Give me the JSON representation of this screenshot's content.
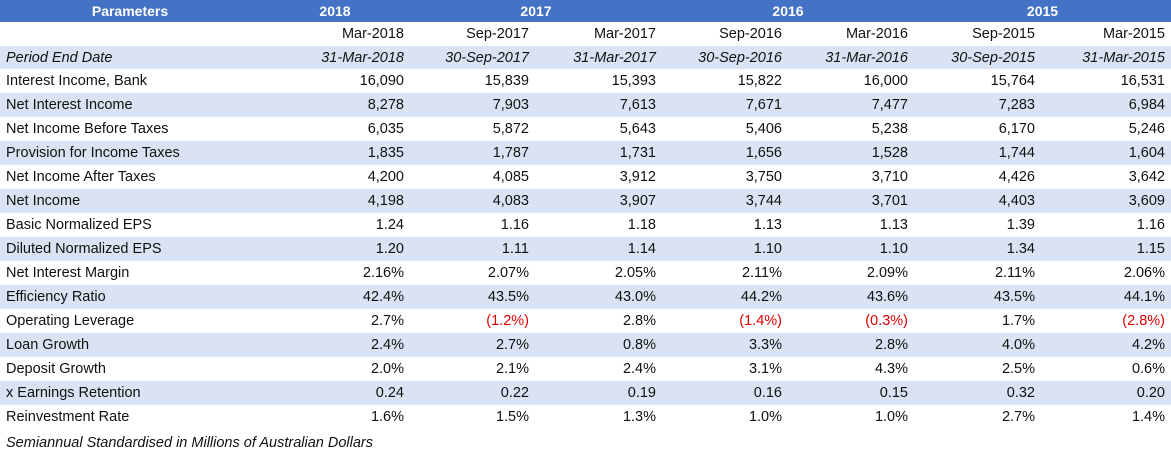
{
  "header": {
    "label": "Parameters",
    "years": [
      {
        "label": "2018",
        "span": 1
      },
      {
        "label": "2017",
        "span": 2
      },
      {
        "label": "2016",
        "span": 2
      },
      {
        "label": "2015",
        "span": 2
      }
    ],
    "periods": [
      "Mar-2018",
      "Sep-2017",
      "Mar-2017",
      "Sep-2016",
      "Mar-2016",
      "Sep-2015",
      "Mar-2015"
    ],
    "end_date_label": "Period End Date",
    "end_dates": [
      "31-Mar-2018",
      "30-Sep-2017",
      "31-Mar-2017",
      "30-Sep-2016",
      "31-Mar-2016",
      "30-Sep-2015",
      "31-Mar-2015"
    ]
  },
  "rows": [
    {
      "label": "Interest Income, Bank",
      "values": [
        "16,090",
        "15,839",
        "15,393",
        "15,822",
        "16,000",
        "15,764",
        "16,531"
      ]
    },
    {
      "label": "Net Interest Income",
      "values": [
        "8,278",
        "7,903",
        "7,613",
        "7,671",
        "7,477",
        "7,283",
        "6,984"
      ]
    },
    {
      "label": "Net Income Before Taxes",
      "values": [
        "6,035",
        "5,872",
        "5,643",
        "5,406",
        "5,238",
        "6,170",
        "5,246"
      ]
    },
    {
      "label": "Provision for Income Taxes",
      "values": [
        "1,835",
        "1,787",
        "1,731",
        "1,656",
        "1,528",
        "1,744",
        "1,604"
      ]
    },
    {
      "label": "Net Income After Taxes",
      "values": [
        "4,200",
        "4,085",
        "3,912",
        "3,750",
        "3,710",
        "4,426",
        "3,642"
      ]
    },
    {
      "label": "Net Income",
      "values": [
        "4,198",
        "4,083",
        "3,907",
        "3,744",
        "3,701",
        "4,403",
        "3,609"
      ]
    },
    {
      "label": "Basic Normalized EPS",
      "values": [
        "1.24",
        "1.16",
        "1.18",
        "1.13",
        "1.13",
        "1.39",
        "1.16"
      ]
    },
    {
      "label": "Diluted Normalized EPS",
      "values": [
        "1.20",
        "1.11",
        "1.14",
        "1.10",
        "1.10",
        "1.34",
        "1.15"
      ]
    },
    {
      "label": "Net Interest Margin",
      "values": [
        "2.16%",
        "2.07%",
        "2.05%",
        "2.11%",
        "2.09%",
        "2.11%",
        "2.06%"
      ]
    },
    {
      "label": "Efficiency Ratio",
      "values": [
        "42.4%",
        "43.5%",
        "43.0%",
        "44.2%",
        "43.6%",
        "43.5%",
        "44.1%"
      ]
    },
    {
      "label": "Operating Leverage",
      "values": [
        "2.7%",
        "(1.2%)",
        "2.8%",
        "(1.4%)",
        "(0.3%)",
        "1.7%",
        "(2.8%)"
      ]
    },
    {
      "label": "Loan Growth",
      "values": [
        "2.4%",
        "2.7%",
        "0.8%",
        "3.3%",
        "2.8%",
        "4.0%",
        "4.2%"
      ]
    },
    {
      "label": "Deposit Growth",
      "values": [
        "2.0%",
        "2.1%",
        "2.4%",
        "3.1%",
        "4.3%",
        "2.5%",
        "0.6%"
      ]
    },
    {
      "label": "x Earnings Retention",
      "values": [
        "0.24",
        "0.22",
        "0.19",
        "0.16",
        "0.15",
        "0.32",
        "0.20"
      ]
    },
    {
      "label": "Reinvestment Rate",
      "values": [
        "1.6%",
        "1.5%",
        "1.3%",
        "1.0%",
        "1.0%",
        "2.7%",
        "1.4%"
      ]
    }
  ],
  "footnote": "Semiannual Standardised in Millions of Australian Dollars",
  "colors": {
    "header_bg": "#4472c4",
    "band_bg": "#dae3f3",
    "negative": "#e00000"
  }
}
